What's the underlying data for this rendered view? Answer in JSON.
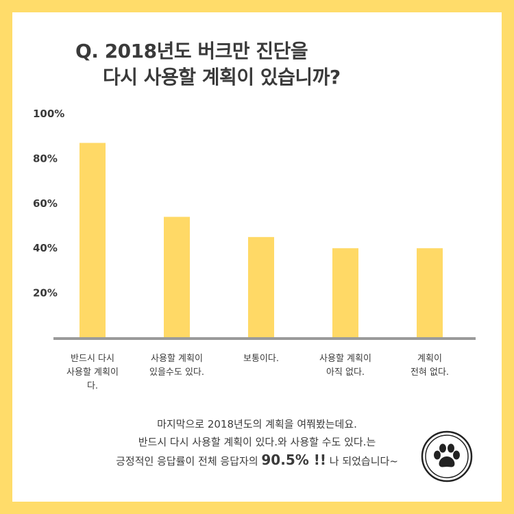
{
  "title": {
    "line1": "Q. 2018년도 버크만 진단을",
    "line2": "다시 사용할 계획이 있습니까?"
  },
  "colors": {
    "background_frame": "#ffdc6a",
    "bar": "#ffd966",
    "axis": "#9a9a9a",
    "text": "#3a3a3a"
  },
  "chart_data": {
    "type": "bar",
    "categories": [
      [
        "반드시 다시",
        "사용할 계획이",
        "다."
      ],
      [
        "사용할 계획이",
        "있을수도 있다."
      ],
      [
        "보통이다."
      ],
      [
        "사용할 계획이",
        "아직 없다."
      ],
      [
        "계획이",
        "전혀 없다."
      ]
    ],
    "values": [
      87,
      54,
      45,
      40,
      40
    ],
    "yticks": [
      "20%",
      "40%",
      "60%",
      "80%",
      "100%"
    ],
    "ylim": [
      0,
      100
    ],
    "grid": false
  },
  "footer": {
    "line1": "마지막으로 2018년도의 계획을 여쭤봤는데요.",
    "line2": "반드시 다시 사용할 계획이 있다.와 사용할 수도 있다.는",
    "line3_pre": "긍정적인 응답률이 전체 응답자의 ",
    "line3_big": "90.5% !!",
    "line3_post": " 나 되었습니다~"
  },
  "badge_icon": "paw-icon"
}
